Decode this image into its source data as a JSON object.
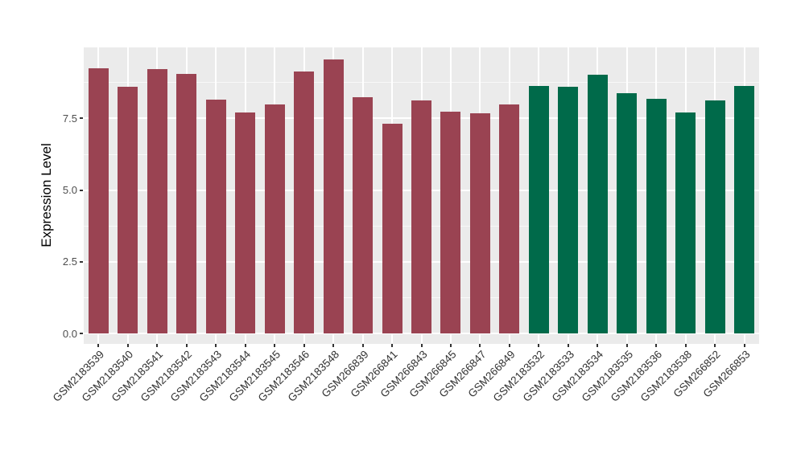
{
  "page": {
    "background": "#FFFFFF",
    "title": ""
  },
  "chart_data": {
    "type": "bar",
    "title": "",
    "xlabel": "",
    "ylabel": "Expression Level",
    "categories": [
      "GSM2183539",
      "GSM2183540",
      "GSM2183541",
      "GSM2183542",
      "GSM2183543",
      "GSM2183544",
      "GSM2183545",
      "GSM2183546",
      "GSM2183548",
      "GSM266839",
      "GSM266841",
      "GSM266843",
      "GSM266845",
      "GSM266847",
      "GSM266849",
      "GSM2183532",
      "GSM2183533",
      "GSM2183534",
      "GSM2183535",
      "GSM2183536",
      "GSM2183538",
      "GSM266852",
      "GSM266853"
    ],
    "values": [
      9.25,
      8.61,
      9.21,
      9.05,
      8.16,
      7.71,
      7.99,
      9.13,
      9.56,
      8.24,
      7.32,
      8.13,
      7.73,
      7.69,
      7.98,
      8.63,
      8.61,
      9.02,
      8.38,
      8.18,
      7.7,
      8.12,
      8.63
    ],
    "groups": [
      {
        "name": "series-1",
        "color": "#9A4352",
        "start_index": 0,
        "end_index": 14
      },
      {
        "name": "series-2",
        "color": "#006A4A",
        "start_index": 15,
        "end_index": 22
      }
    ],
    "ylim": [
      0,
      10.05
    ],
    "yticks": [
      0,
      2.5,
      5,
      7.5
    ],
    "ytick_labels": [
      "0.0",
      "2.5",
      "5.0",
      "7.5"
    ],
    "grid_major_y": [
      0,
      2.5,
      5,
      7.5,
      10
    ],
    "grid_minor_y": [
      1.25,
      3.75,
      6.25,
      8.75
    ],
    "grid": "on",
    "legend": "none",
    "panel_bg": "#EBEBEB",
    "grid_color": "#FFFFFF",
    "axis_text_color": "#4D4D4D",
    "tick_color": "#333333",
    "x_tick_rotation_deg": 45
  }
}
